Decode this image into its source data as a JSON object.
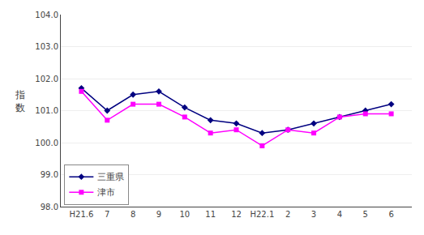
{
  "chart_data": {
    "type": "line",
    "categories": [
      "H21.6",
      "7",
      "8",
      "9",
      "10",
      "11",
      "12",
      "H22.1",
      "2",
      "3",
      "4",
      "5",
      "6"
    ],
    "series": [
      {
        "name": "三重県",
        "color": "#000080",
        "marker": "diamond",
        "values": [
          101.7,
          101.0,
          101.5,
          101.6,
          101.1,
          100.7,
          100.6,
          100.3,
          100.4,
          100.6,
          100.8,
          101.0,
          101.2
        ]
      },
      {
        "name": "津市",
        "color": "#ff00ff",
        "marker": "square",
        "values": [
          101.6,
          100.7,
          101.2,
          101.2,
          100.8,
          100.3,
          100.4,
          99.9,
          100.4,
          100.3,
          100.8,
          100.9,
          100.9
        ]
      }
    ],
    "ylabel": "指数",
    "ylim": [
      98.0,
      104.0
    ],
    "yticks": [
      {
        "value": 98.0,
        "label": "98.0"
      },
      {
        "value": 99.0,
        "label": "99.0"
      },
      {
        "value": 100.0,
        "label": "100.0"
      },
      {
        "value": 101.0,
        "label": "101.0"
      },
      {
        "value": 102.0,
        "label": "102.0"
      },
      {
        "value": 103.0,
        "label": "103.0"
      },
      {
        "value": 104.0,
        "label": "104.0"
      }
    ],
    "grid": true,
    "legend": "lower left"
  }
}
